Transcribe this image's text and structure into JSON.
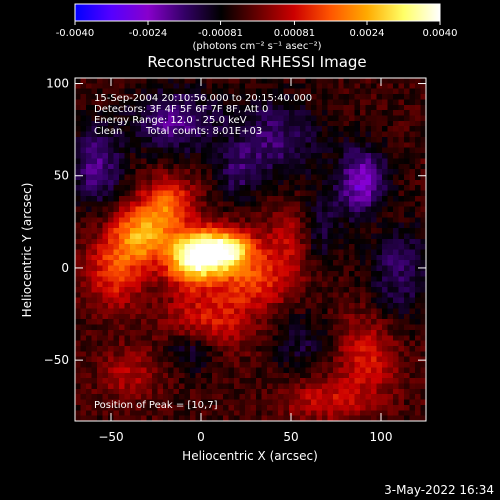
{
  "chart_data": {
    "type": "heatmap",
    "title": "Reconstructed RHESSI Image",
    "xlabel": "Heliocentric X (arcsec)",
    "ylabel": "Heliocentric Y (arcsec)",
    "xlim": [
      -70,
      125
    ],
    "ylim": [
      -83,
      103
    ],
    "xticks": [
      -50,
      0,
      50,
      100
    ],
    "yticks": [
      -50,
      0,
      50,
      100
    ],
    "colorbar": {
      "min": -0.004,
      "max": 0.004,
      "ticks": [
        -0.004,
        -0.0024,
        -0.00081,
        0.00081,
        0.0024,
        0.004
      ],
      "tick_labels": [
        "-0.0040",
        "-0.0024",
        "-0.00081",
        "0.00081",
        "0.0024",
        "0.0040"
      ],
      "units_label": "(photons cm⁻² s⁻¹ asec⁻²)",
      "colormap": [
        "#0000ff",
        "#5500ff",
        "#8800cc",
        "#330066",
        "#000000",
        "#660000",
        "#cc0000",
        "#ff5500",
        "#ffaa00",
        "#ffff66",
        "#ffffff"
      ]
    },
    "info_lines": [
      "15-Sep-2004 20:10:56.000 to 20:15:40.000",
      "Detectors: 3F 4F 5F 6F 7F 8F, Att 0",
      "Energy Range: 12.0 - 25.0 keV"
    ],
    "method": "Clean",
    "total_counts": "Total counts: 8.01E+03",
    "peak_label": "Position of Peak = [10,7]",
    "peak": [
      10,
      7
    ],
    "sources": [
      {
        "x": 12,
        "y": 9,
        "sx": 12,
        "sy": 8,
        "amp": 0.0042
      },
      {
        "x": -5,
        "y": 5,
        "sx": 10,
        "sy": 10,
        "amp": 0.0033
      },
      {
        "x": -32,
        "y": 18,
        "sx": 12,
        "sy": 11,
        "amp": 0.0026
      },
      {
        "x": -18,
        "y": 36,
        "sx": 10,
        "sy": 9,
        "amp": 0.0019
      },
      {
        "x": -48,
        "y": -2,
        "sx": 11,
        "sy": 14,
        "amp": 0.0016
      },
      {
        "x": 30,
        "y": -8,
        "sx": 14,
        "sy": 10,
        "amp": 0.0014
      },
      {
        "x": 5,
        "y": -28,
        "sx": 18,
        "sy": 12,
        "amp": 0.0013
      },
      {
        "x": 50,
        "y": 15,
        "sx": 10,
        "sy": 14,
        "amp": 0.0011
      },
      {
        "x": 92,
        "y": -48,
        "sx": 12,
        "sy": 16,
        "amp": 0.0013
      },
      {
        "x": 68,
        "y": -72,
        "sx": 16,
        "sy": 8,
        "amp": 0.0011
      },
      {
        "x": -40,
        "y": -58,
        "sx": 12,
        "sy": 10,
        "amp": 0.0009
      },
      {
        "x": 100,
        "y": 28,
        "sx": 10,
        "sy": 12,
        "amp": 0.0006
      },
      {
        "x": 90,
        "y": 45,
        "sx": 10,
        "sy": 14,
        "amp": -0.0022
      },
      {
        "x": -15,
        "y": 80,
        "sx": 16,
        "sy": 12,
        "amp": -0.0016
      },
      {
        "x": 40,
        "y": 70,
        "sx": 18,
        "sy": 16,
        "amp": -0.0013
      },
      {
        "x": -58,
        "y": 55,
        "sx": 10,
        "sy": 16,
        "amp": -0.0015
      },
      {
        "x": 65,
        "y": 20,
        "sx": 8,
        "sy": 14,
        "amp": -0.0011
      },
      {
        "x": 110,
        "y": 0,
        "sx": 12,
        "sy": 20,
        "amp": -0.0012
      },
      {
        "x": 20,
        "y": 50,
        "sx": 8,
        "sy": 10,
        "amp": -0.0009
      },
      {
        "x": -5,
        "y": -45,
        "sx": 10,
        "sy": 8,
        "amp": -0.0011
      },
      {
        "x": 55,
        "y": -40,
        "sx": 12,
        "sy": 12,
        "amp": -0.0008
      }
    ]
  },
  "footer": {
    "timestamp": "3-May-2022 16:34"
  }
}
